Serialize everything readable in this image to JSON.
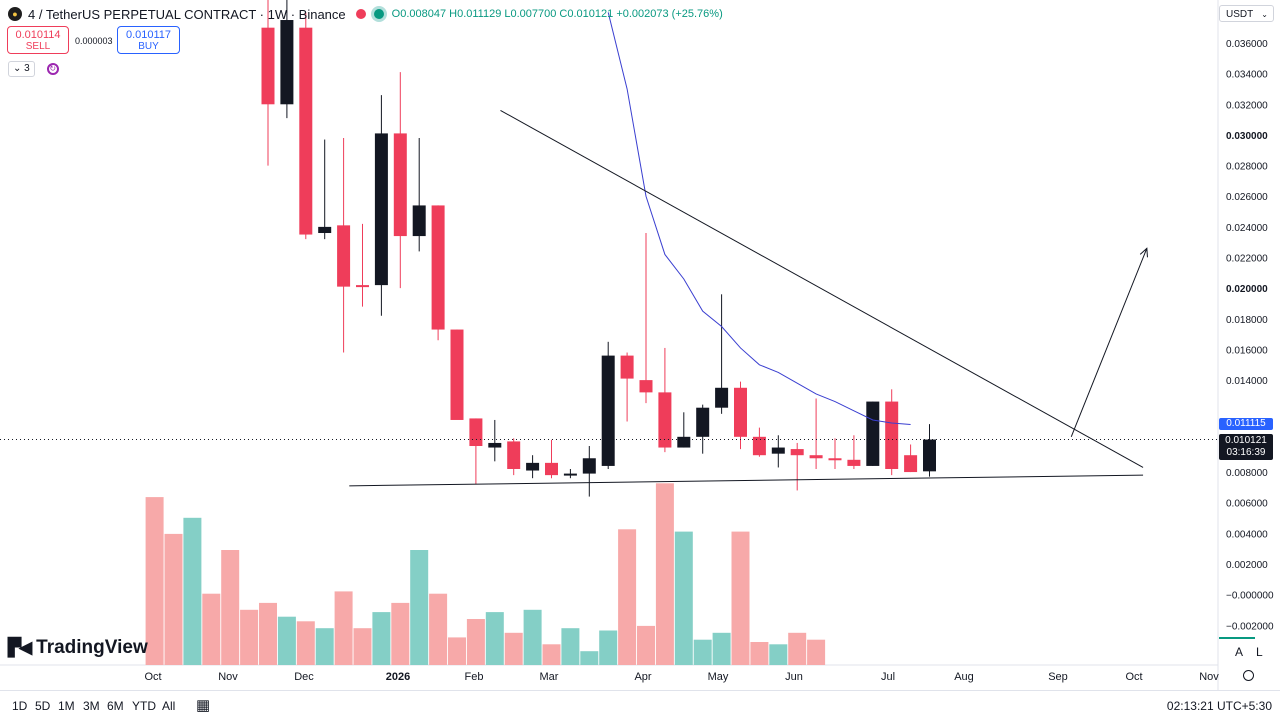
{
  "legend": {
    "symbol_icon": "coin-logo-icon",
    "title": "4 / TetherUS PERPETUAL CONTRACT · 1W · Binance",
    "ohlc": "O0.008047 H0.011129 L0.007700 C0.010121 +0.002073 (+25.76%)"
  },
  "trade": {
    "sell_price": "0.010114",
    "sell_label": "SELL",
    "spread": "0.000003",
    "buy_price": "0.010117",
    "buy_label": "BUY"
  },
  "indicators": {
    "count": "3",
    "toggle_icon": "chevron-down-icon",
    "sync_icon": "sync-icon"
  },
  "currency_select": "USDT",
  "price_tags": {
    "ma_value": "0.011115",
    "last_price": "0.010121",
    "countdown": "03:16:39"
  },
  "branding": {
    "logo_text": "TradingView"
  },
  "bottom_bar": {
    "timeframes": [
      "1D",
      "5D",
      "1M",
      "3M",
      "6M",
      "YTD",
      "All"
    ],
    "calendar_icon": "calendar-range-icon",
    "clock": "02:13:21 UTC+5:30"
  },
  "scale_buttons": {
    "auto": "A",
    "log": "L",
    "settings_icon": "gear-icon"
  },
  "colors": {
    "up": "#131722",
    "down": "#ef3d5a",
    "vol_up": "#84cfc6",
    "vol_down": "#f7a9a9",
    "ma": "#3a3fd0",
    "accent": "#2962ff"
  },
  "chart_data": {
    "type": "candlestick",
    "title": "4 / TetherUS PERPETUAL CONTRACT · 1W · Binance",
    "y_ticks": [
      "0.036000",
      "0.034000",
      "0.032000",
      "0.030000",
      "0.028000",
      "0.026000",
      "0.024000",
      "0.022000",
      "0.020000",
      "0.018000",
      "0.016000",
      "0.014000",
      "0.012000",
      "0.010000",
      "0.008000",
      "0.006000",
      "0.004000",
      "0.002000",
      "−0.000000",
      "−0.002000"
    ],
    "y_tick_values": [
      0.036,
      0.034,
      0.032,
      0.03,
      0.028,
      0.026,
      0.024,
      0.022,
      0.02,
      0.018,
      0.016,
      0.014,
      0.012,
      0.01,
      0.008,
      0.006,
      0.004,
      0.002,
      0.0,
      -0.002
    ],
    "x_ticks": [
      "Oct",
      "Nov",
      "Dec",
      "2026",
      "Feb",
      "Mar",
      "Apr",
      "May",
      "Jun",
      "Jul",
      "Aug",
      "Sep",
      "Oct",
      "Nov"
    ],
    "candles": [
      {
        "o": 0.037,
        "h": 0.039,
        "l": 0.028,
        "c": 0.032
      },
      {
        "o": 0.032,
        "h": 0.0395,
        "l": 0.0311,
        "c": 0.0375
      },
      {
        "o": 0.037,
        "h": 0.038,
        "l": 0.0232,
        "c": 0.0235
      },
      {
        "o": 0.0236,
        "h": 0.0297,
        "l": 0.0232,
        "c": 0.024
      },
      {
        "o": 0.0241,
        "h": 0.0298,
        "l": 0.0158,
        "c": 0.0201
      },
      {
        "o": 0.0202,
        "h": 0.0242,
        "l": 0.0188,
        "c": 0.0201
      },
      {
        "o": 0.0202,
        "h": 0.0326,
        "l": 0.0182,
        "c": 0.0301
      },
      {
        "o": 0.0301,
        "h": 0.0341,
        "l": 0.02,
        "c": 0.0234
      },
      {
        "o": 0.0234,
        "h": 0.0298,
        "l": 0.0224,
        "c": 0.0254
      },
      {
        "o": 0.0254,
        "h": 0.0254,
        "l": 0.0166,
        "c": 0.0173
      },
      {
        "o": 0.0173,
        "h": 0.0173,
        "l": 0.0116,
        "c": 0.0114
      },
      {
        "o": 0.0115,
        "h": 0.0115,
        "l": 0.0072,
        "c": 0.0097
      },
      {
        "o": 0.0096,
        "h": 0.0114,
        "l": 0.0087,
        "c": 0.0099
      },
      {
        "o": 0.01,
        "h": 0.0102,
        "l": 0.0078,
        "c": 0.0082
      },
      {
        "o": 0.0081,
        "h": 0.0091,
        "l": 0.0076,
        "c": 0.0086
      },
      {
        "o": 0.0086,
        "h": 0.0101,
        "l": 0.0076,
        "c": 0.0078
      },
      {
        "o": 0.0078,
        "h": 0.0082,
        "l": 0.0076,
        "c": 0.0079
      },
      {
        "o": 0.0079,
        "h": 0.0097,
        "l": 0.0064,
        "c": 0.0089
      },
      {
        "o": 0.0084,
        "h": 0.0165,
        "l": 0.0082,
        "c": 0.0156
      },
      {
        "o": 0.0156,
        "h": 0.0158,
        "l": 0.0113,
        "c": 0.0141
      },
      {
        "o": 0.014,
        "h": 0.0236,
        "l": 0.0125,
        "c": 0.0132
      },
      {
        "o": 0.0132,
        "h": 0.0161,
        "l": 0.0093,
        "c": 0.0096
      },
      {
        "o": 0.0096,
        "h": 0.0119,
        "l": 0.0096,
        "c": 0.0103
      },
      {
        "o": 0.0103,
        "h": 0.0124,
        "l": 0.0092,
        "c": 0.0122
      },
      {
        "o": 0.0122,
        "h": 0.0196,
        "l": 0.0118,
        "c": 0.0135
      },
      {
        "o": 0.0135,
        "h": 0.0139,
        "l": 0.0095,
        "c": 0.0103
      },
      {
        "o": 0.0103,
        "h": 0.0109,
        "l": 0.009,
        "c": 0.0091
      },
      {
        "o": 0.0092,
        "h": 0.0104,
        "l": 0.0083,
        "c": 0.0096
      },
      {
        "o": 0.0095,
        "h": 0.0099,
        "l": 0.0068,
        "c": 0.0091
      },
      {
        "o": 0.0091,
        "h": 0.0128,
        "l": 0.0082,
        "c": 0.0089
      },
      {
        "o": 0.0089,
        "h": 0.0102,
        "l": 0.0082,
        "c": 0.0088
      },
      {
        "o": 0.0088,
        "h": 0.0104,
        "l": 0.0082,
        "c": 0.0084
      },
      {
        "o": 0.0084,
        "h": 0.0126,
        "l": 0.0084,
        "c": 0.0126
      },
      {
        "o": 0.0126,
        "h": 0.0134,
        "l": 0.0078,
        "c": 0.0082
      },
      {
        "o": 0.0091,
        "h": 0.0098,
        "l": 0.008,
        "c": 0.008
      },
      {
        "o": 0.008047,
        "h": 0.011129,
        "l": 0.0077,
        "c": 0.010121
      }
    ],
    "volume_relative": [
      0.73,
      0.57,
      0.64,
      0.31,
      0.5,
      0.24,
      0.27,
      0.21,
      0.19,
      0.16,
      0.32,
      0.16,
      0.23,
      0.27,
      0.5,
      0.31,
      0.12,
      0.2,
      0.23,
      0.14,
      0.24,
      0.09,
      0.16,
      0.06,
      0.15,
      0.59,
      0.17,
      0.79,
      0.58,
      0.11,
      0.14,
      0.58,
      0.1,
      0.09,
      0.14,
      0.11
    ],
    "moving_average_line": {
      "points": [
        [
          18,
          0.038
        ],
        [
          19,
          0.033
        ],
        [
          20,
          0.026
        ],
        [
          21,
          0.0222
        ],
        [
          22,
          0.0206
        ],
        [
          23,
          0.0185
        ],
        [
          24,
          0.0175
        ],
        [
          25,
          0.0161
        ],
        [
          26,
          0.015
        ],
        [
          27,
          0.0145
        ],
        [
          28,
          0.0138
        ],
        [
          29,
          0.0131
        ],
        [
          30,
          0.0126
        ],
        [
          31,
          0.012
        ],
        [
          32,
          0.0114
        ],
        [
          33,
          0.0112
        ],
        [
          34,
          0.0111
        ]
      ]
    },
    "drawings": {
      "upper_trendline": [
        [
          12.3,
          0.0316
        ],
        [
          46.3,
          0.0083
        ]
      ],
      "lower_trendline": [
        [
          4.3,
          0.0071
        ],
        [
          46.3,
          0.0078
        ]
      ],
      "arrow": [
        [
          42.5,
          0.0103
        ],
        [
          46.5,
          0.0226
        ]
      ]
    },
    "grid": false
  }
}
